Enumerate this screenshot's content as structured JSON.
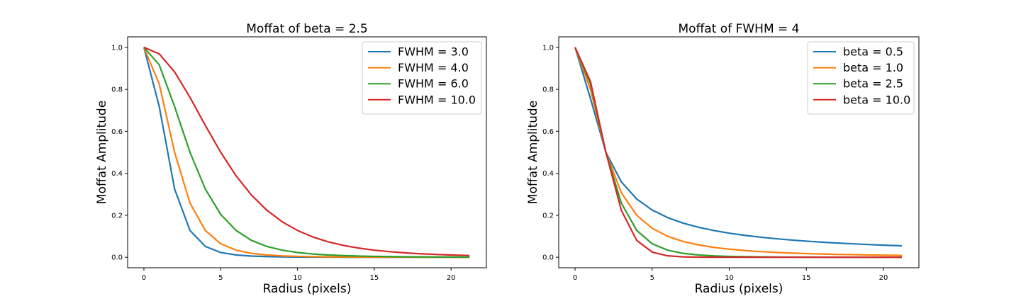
{
  "chart_data": [
    {
      "type": "line",
      "title": "Moffat of beta = 2.5",
      "xlabel": "Radius (pixels)",
      "ylabel": "Moffat Amplitude",
      "xlim": [
        -1.06,
        22.3
      ],
      "ylim": [
        -0.05,
        1.05
      ],
      "xticks": [
        "0",
        "5",
        "10",
        "15",
        "20"
      ],
      "yticks": [
        "0.0",
        "0.2",
        "0.4",
        "0.6",
        "0.8",
        "1.0"
      ],
      "legend_position": "top-right",
      "r_max": 21.2,
      "beta": 2.5,
      "series": [
        {
          "name": "FWHM = 3.0",
          "fwhm": 3.0,
          "color": "#1f77b4"
        },
        {
          "name": "FWHM = 4.0",
          "fwhm": 4.0,
          "color": "#ff7f0e"
        },
        {
          "name": "FWHM = 6.0",
          "fwhm": 6.0,
          "color": "#2ca02c"
        },
        {
          "name": "FWHM = 10.0",
          "fwhm": 10.0,
          "color": "#d62728"
        }
      ]
    },
    {
      "type": "line",
      "title": "Moffat of FWHM = 4",
      "xlabel": "Radius (pixels)",
      "ylabel": "Moffat Amplitude",
      "xlim": [
        -1.06,
        22.3
      ],
      "ylim": [
        -0.05,
        1.05
      ],
      "xticks": [
        "0",
        "5",
        "10",
        "15",
        "20"
      ],
      "yticks": [
        "0.0",
        "0.2",
        "0.4",
        "0.6",
        "0.8",
        "1.0"
      ],
      "legend_position": "top-right",
      "r_max": 21.2,
      "fwhm": 4,
      "series": [
        {
          "name": "beta = 0.5",
          "beta": 0.5,
          "color": "#1f77b4"
        },
        {
          "name": "beta = 1.0",
          "beta": 1.0,
          "color": "#ff7f0e"
        },
        {
          "name": "beta = 2.5",
          "beta": 2.5,
          "color": "#2ca02c"
        },
        {
          "name": "beta = 10.0",
          "beta": 10.0,
          "color": "#d62728"
        }
      ]
    }
  ]
}
